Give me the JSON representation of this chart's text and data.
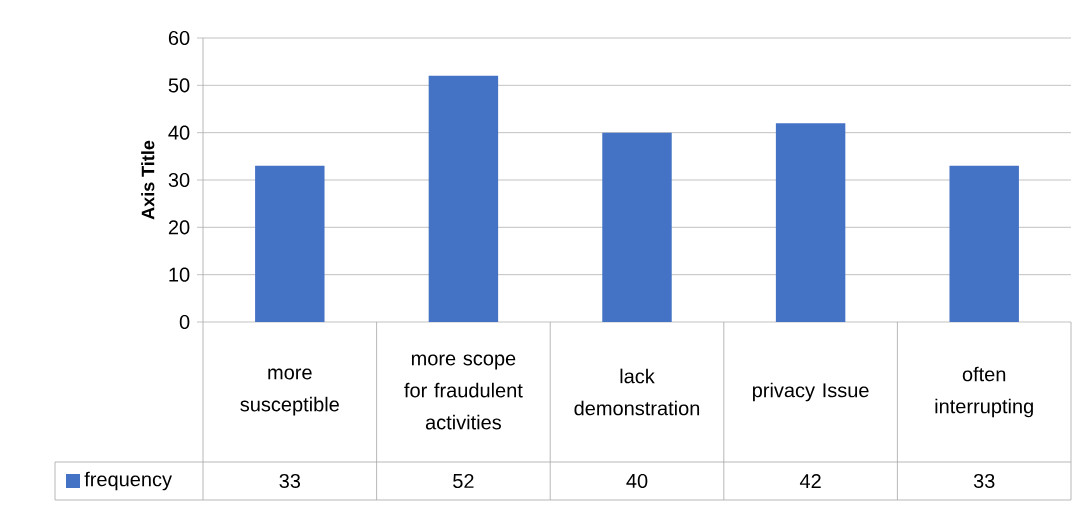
{
  "chart_data": {
    "type": "bar",
    "ylabel": "Axis Title",
    "categories": [
      "more susceptible",
      "more scope for fraudulent activities",
      "lack demonstration",
      "privacy Issue",
      "often interrupting"
    ],
    "series": [
      {
        "name": "frequency",
        "color": "#4472c4",
        "values": [
          33,
          52,
          40,
          42,
          33
        ]
      }
    ],
    "ylim": [
      0,
      60
    ],
    "yticks": [
      0,
      10,
      20,
      30,
      40,
      50,
      60
    ],
    "grid": "y",
    "data_labels": true,
    "legend": "bottom"
  }
}
